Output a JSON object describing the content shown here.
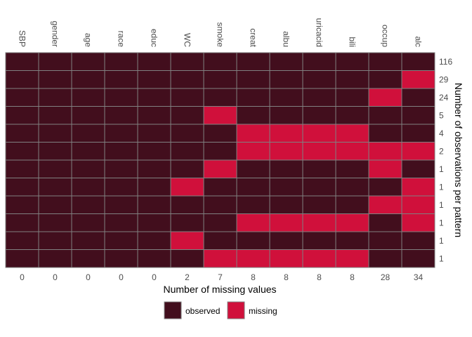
{
  "chart_data": {
    "type": "heatmap",
    "title": "",
    "xlabel": "Number of missing values",
    "ylabel": "Number of observations per pattern",
    "variables": [
      "SBP",
      "gender",
      "age",
      "race",
      "educ",
      "WC",
      "smoke",
      "creat",
      "albu",
      "uricacid",
      "bili",
      "occup",
      "alc"
    ],
    "missing_counts": [
      "0",
      "0",
      "0",
      "0",
      "0",
      "2",
      "7",
      "8",
      "8",
      "8",
      "8",
      "28",
      "34"
    ],
    "pattern_counts": [
      "116",
      "29",
      "24",
      "5",
      "4",
      "2",
      "1",
      "1",
      "1",
      "1",
      "1",
      "1"
    ],
    "patterns": [
      [
        0,
        0,
        0,
        0,
        0,
        0,
        0,
        0,
        0,
        0,
        0,
        0,
        0
      ],
      [
        0,
        0,
        0,
        0,
        0,
        0,
        0,
        0,
        0,
        0,
        0,
        0,
        1
      ],
      [
        0,
        0,
        0,
        0,
        0,
        0,
        0,
        0,
        0,
        0,
        0,
        1,
        0
      ],
      [
        0,
        0,
        0,
        0,
        0,
        0,
        1,
        0,
        0,
        0,
        0,
        0,
        0
      ],
      [
        0,
        0,
        0,
        0,
        0,
        0,
        0,
        1,
        1,
        1,
        1,
        0,
        0
      ],
      [
        0,
        0,
        0,
        0,
        0,
        0,
        0,
        1,
        1,
        1,
        1,
        1,
        1
      ],
      [
        0,
        0,
        0,
        0,
        0,
        0,
        1,
        0,
        0,
        0,
        0,
        1,
        0
      ],
      [
        0,
        0,
        0,
        0,
        0,
        1,
        0,
        0,
        0,
        0,
        0,
        0,
        1
      ],
      [
        0,
        0,
        0,
        0,
        0,
        0,
        0,
        0,
        0,
        0,
        0,
        1,
        1
      ],
      [
        0,
        0,
        0,
        0,
        0,
        0,
        0,
        1,
        1,
        1,
        1,
        0,
        1
      ],
      [
        0,
        0,
        0,
        0,
        0,
        1,
        0,
        0,
        0,
        0,
        0,
        0,
        0
      ],
      [
        0,
        0,
        0,
        0,
        0,
        0,
        1,
        1,
        1,
        1,
        1,
        0,
        0
      ]
    ],
    "legend": {
      "position": "bottom",
      "entries": [
        "observed",
        "missing"
      ]
    },
    "colors": {
      "observed": "#420e1d",
      "missing": "#d0103b",
      "grid": "#808080"
    }
  }
}
